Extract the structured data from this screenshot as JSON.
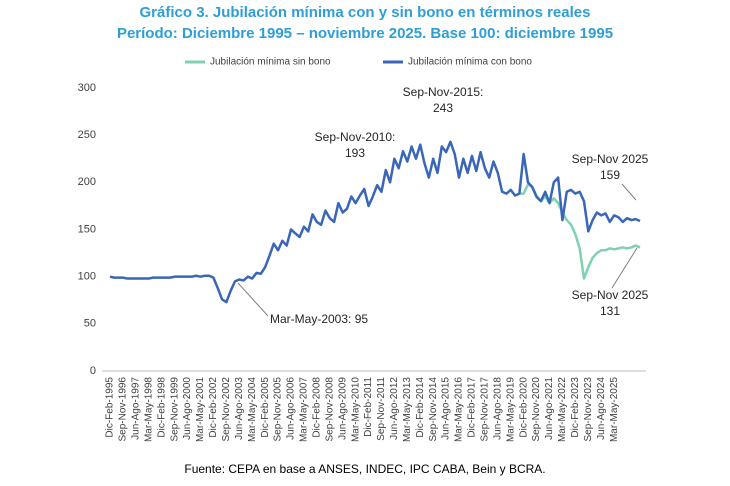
{
  "chart_data": {
    "type": "line",
    "title": "Gráfico 3. Jubilación mínima con y sin bono en términos reales",
    "subtitle": "Período: Diciembre 1995 – noviembre 2025. Base 100: diciembre 1995",
    "source": "Fuente: CEPA en base a ANSES, INDEC, IPC CABA, Bein y BCRA.",
    "categories": [
      "Dic-Feb-1995",
      null,
      null,
      "Sep-Nov-1996",
      null,
      null,
      "Jun-Ago-1997",
      null,
      null,
      "Mar-May-1998",
      null,
      null,
      "Dic-Feb-1998",
      null,
      null,
      "Sep-Nov-1999",
      null,
      null,
      "Jun-Ago-2000",
      null,
      null,
      "Mar-May-2001",
      null,
      null,
      "Dic-Feb-2002",
      null,
      null,
      "Sep-Nov-2002",
      null,
      null,
      "Jun-Ago-2003",
      null,
      null,
      "Mar-May-2004",
      null,
      null,
      "Dic-Feb-2005",
      null,
      null,
      "Sep-Nov-2005",
      null,
      null,
      "Jun-Ago-2006",
      null,
      null,
      "Mar-May-2007",
      null,
      null,
      "Dic-Feb-2008",
      null,
      null,
      "Sep-Nov-2008",
      null,
      null,
      "Jun-Ago-2009",
      null,
      null,
      "Mar-May-2010",
      null,
      null,
      "Dic-Feb-2011",
      null,
      null,
      "Sep-Nov-2011",
      null,
      null,
      "Jun-Ago-2012",
      null,
      null,
      "Mar-May-2013",
      null,
      null,
      "Dic-Feb-2014",
      null,
      null,
      "Sep-Nov-2014",
      null,
      null,
      "Jun-Ago-2015",
      null,
      null,
      "Mar-May-2016",
      null,
      null,
      "Dic-Feb-2017",
      null,
      null,
      "Sep-Nov-2017",
      null,
      null,
      "Jun-Ago-2018",
      null,
      null,
      "Mar-May-2019",
      null,
      null,
      "Dic-Feb-2020",
      null,
      null,
      "Sep-Nov-2020",
      null,
      null,
      "Jun-Ago-2021",
      null,
      null,
      "Mar-May-2022",
      null,
      null,
      "Dic-Feb-2023",
      null,
      null,
      "Sep-Nov-2023",
      null,
      null,
      "Jun-Ago-2024",
      null,
      null,
      "Mar-May-2025",
      null,
      null,
      null,
      null,
      null,
      null
    ],
    "series": [
      {
        "name": "Jubilación mínima sin bono",
        "color": "#7fd1b0",
        "values": [
          null,
          null,
          null,
          null,
          null,
          null,
          null,
          null,
          null,
          null,
          null,
          null,
          null,
          null,
          null,
          null,
          null,
          null,
          null,
          null,
          null,
          null,
          null,
          null,
          null,
          null,
          null,
          null,
          null,
          null,
          null,
          null,
          null,
          null,
          null,
          null,
          null,
          null,
          null,
          null,
          null,
          null,
          null,
          null,
          null,
          null,
          null,
          null,
          null,
          null,
          null,
          null,
          null,
          null,
          null,
          null,
          null,
          null,
          null,
          null,
          null,
          null,
          null,
          null,
          null,
          null,
          null,
          null,
          null,
          null,
          null,
          null,
          null,
          null,
          null,
          null,
          null,
          null,
          null,
          null,
          null,
          null,
          null,
          null,
          null,
          null,
          null,
          null,
          null,
          null,
          null,
          null,
          null,
          null,
          null,
          188,
          188,
          198,
          195,
          184,
          180,
          185,
          178,
          183,
          178,
          168,
          160,
          155,
          145,
          130,
          98,
          110,
          120,
          125,
          128,
          128,
          130,
          129,
          130,
          131,
          130,
          131,
          133,
          131
        ]
      },
      {
        "name": "Jubilación mínima con bono",
        "color": "#3a66b8",
        "values": [
          100,
          99,
          99,
          99,
          98,
          98,
          98,
          98,
          98,
          98,
          99,
          99,
          99,
          99,
          99,
          100,
          100,
          100,
          100,
          100,
          101,
          100,
          101,
          101,
          99,
          88,
          76,
          73,
          85,
          95,
          97,
          96,
          100,
          98,
          104,
          103,
          110,
          122,
          135,
          128,
          138,
          133,
          150,
          146,
          142,
          153,
          148,
          166,
          158,
          155,
          170,
          162,
          158,
          178,
          168,
          172,
          185,
          178,
          186,
          193,
          175,
          185,
          197,
          190,
          213,
          200,
          225,
          215,
          233,
          222,
          238,
          225,
          240,
          220,
          205,
          225,
          210,
          238,
          232,
          243,
          230,
          205,
          225,
          210,
          228,
          212,
          232,
          215,
          205,
          222,
          210,
          190,
          188,
          192,
          186,
          188,
          230,
          200,
          195,
          185,
          180,
          190,
          178,
          200,
          205,
          160,
          190,
          192,
          188,
          190,
          180,
          148,
          160,
          168,
          165,
          167,
          158,
          165,
          163,
          158,
          162,
          160,
          161,
          159
        ]
      }
    ],
    "ylim": [
      0,
      300
    ],
    "yticks": [
      0,
      50,
      100,
      150,
      200,
      250,
      300
    ],
    "annotations": [
      [
        "Mar-May-2003: 95"
      ],
      [
        "Sep-Nov-2010:",
        "193"
      ],
      [
        "Sep-Nov-2015:",
        "243"
      ],
      [
        "Sep-Nov 2025",
        "159"
      ],
      [
        "Sep-Nov 2025",
        "131"
      ]
    ]
  }
}
